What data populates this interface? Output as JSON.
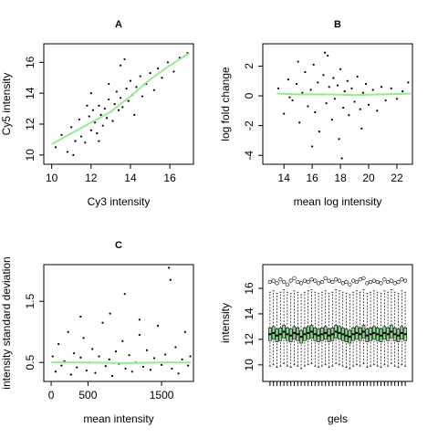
{
  "chart_data": [
    {
      "type": "scatter",
      "title": "A",
      "xlabel": "Cy3 intensity",
      "ylabel": "Cy5 intensity",
      "xlim": [
        9.6,
        17.2
      ],
      "ylim": [
        9.4,
        17.2
      ],
      "xticks": [
        10,
        12,
        14,
        16
      ],
      "yticks": [
        10,
        12,
        14,
        16
      ],
      "color": "#000000",
      "x": [
        10.2,
        10.5,
        10.8,
        11,
        11.2,
        11.4,
        11.5,
        11.7,
        11.9,
        12,
        12.1,
        12.2,
        12.3,
        12.4,
        12.5,
        12.6,
        12.7,
        12.8,
        12.9,
        13,
        13.1,
        13.2,
        13.3,
        13.4,
        13.5,
        13.6,
        13.8,
        13.9,
        14,
        14.1,
        14.3,
        14.5,
        14.6,
        14.8,
        15,
        15.2,
        15.4,
        15.6,
        15.9,
        16.2,
        16.5,
        16.9,
        11.8,
        12.9,
        13.5,
        12.4,
        14.2,
        11.1,
        12,
        13.7
      ],
      "y": [
        10.5,
        11.3,
        10.2,
        11.8,
        10.9,
        12.3,
        11.2,
        10.8,
        12.5,
        11.6,
        12.9,
        12.1,
        11.4,
        13.2,
        12.6,
        11.9,
        13,
        12.4,
        13.6,
        12.8,
        12.2,
        13.3,
        14.1,
        12.9,
        13.7,
        13.1,
        14.3,
        13.5,
        14.8,
        13.9,
        14.4,
        15.1,
        13.8,
        14.6,
        15.3,
        14.2,
        15.6,
        15,
        16,
        15.4,
        16.3,
        16.6,
        13.2,
        14.6,
        15.8,
        10.9,
        12.6,
        10,
        14,
        16.2
      ],
      "trend": {
        "color": "#90ee90",
        "x": [
          10,
          11,
          12,
          13,
          14,
          15,
          16,
          17
        ],
        "y": [
          10.7,
          11.4,
          12.1,
          12.8,
          13.8,
          14.9,
          15.8,
          16.6
        ]
      }
    },
    {
      "type": "scatter",
      "title": "B",
      "xlabel": "mean log intensity",
      "ylabel": "log fold change",
      "xlim": [
        12.5,
        23.1
      ],
      "ylim": [
        -4.6,
        3.5
      ],
      "xticks": [
        14,
        16,
        18,
        20,
        22
      ],
      "yticks": [
        -4,
        -2,
        0,
        2
      ],
      "color": "#000000",
      "x": [
        13.6,
        14,
        14.3,
        14.6,
        14.9,
        15.1,
        15.3,
        15.5,
        15.7,
        15.9,
        16.1,
        16.2,
        16.4,
        16.5,
        16.7,
        16.8,
        17,
        17.1,
        17.2,
        17.4,
        17.5,
        17.6,
        17.8,
        17.9,
        18,
        18.2,
        18.3,
        18.5,
        18.6,
        18.8,
        19,
        19.2,
        19.4,
        19.6,
        19.8,
        20,
        20.3,
        20.6,
        20.9,
        21.2,
        21.6,
        22,
        22.4,
        22.8,
        16,
        18.1,
        16.9,
        15,
        19.5,
        14.4
      ],
      "y": [
        0.5,
        -1.2,
        1.1,
        -0.3,
        0.8,
        -1.8,
        0.2,
        1.6,
        -0.7,
        0.4,
        2.1,
        -1.1,
        0.9,
        -2.4,
        0.1,
        1.4,
        -0.5,
        2.7,
        0.6,
        -1.6,
        1.2,
        -0.2,
        0.7,
        -2.9,
        1.8,
        -0.8,
        0.3,
        1,
        -1.3,
        0.5,
        -0.4,
        1.3,
        -0.9,
        0.2,
        0.8,
        -0.6,
        0.4,
        -1,
        0.6,
        -0.3,
        0.5,
        -0.2,
        0.3,
        0.9,
        -3.4,
        -4.2,
        2.9,
        2.3,
        -2.2,
        -0.1
      ],
      "trend": {
        "color": "#90ee90",
        "x": [
          13.5,
          15,
          17,
          19,
          21,
          23
        ],
        "y": [
          0.15,
          0.1,
          0.1,
          0.05,
          0.1,
          0.15
        ]
      }
    },
    {
      "type": "scatter",
      "title": "C",
      "xlabel": "mean intensity",
      "ylabel": "intensity standard deviation",
      "xlim": [
        -100,
        1933
      ],
      "ylim": [
        0.19,
        2.1
      ],
      "xticks": [
        0,
        500,
        1500
      ],
      "yticks": [
        0.5,
        1.5
      ],
      "color": "#000000",
      "x": [
        20,
        60,
        100,
        140,
        180,
        230,
        270,
        310,
        350,
        400,
        440,
        480,
        520,
        560,
        600,
        650,
        700,
        740,
        790,
        830,
        880,
        920,
        970,
        1010,
        1060,
        1100,
        1150,
        1200,
        1250,
        1300,
        1350,
        1400,
        1450,
        1500,
        1550,
        1600,
        1640,
        1690,
        1730,
        1780,
        1820,
        1860,
        1890,
        1000,
        1620,
        800,
        400,
        1200
      ],
      "y": [
        0.6,
        0.35,
        0.8,
        0.45,
        0.52,
        1,
        0.3,
        0.65,
        0.42,
        0.58,
        0.9,
        0.37,
        0.5,
        0.72,
        0.33,
        0.6,
        1.15,
        0.44,
        0.55,
        0.28,
        0.68,
        0.48,
        0.85,
        0.4,
        0.62,
        0.35,
        0.5,
        0.95,
        0.43,
        0.7,
        0.38,
        0.57,
        1.1,
        0.46,
        0.63,
        2.05,
        0.4,
        0.75,
        0.32,
        0.55,
        1,
        0.45,
        0.6,
        1.62,
        1.85,
        1.3,
        1.25,
        1.2
      ],
      "trend": {
        "color": "#90ee90",
        "x": [
          0,
          500,
          1000,
          1500,
          1900
        ],
        "y": [
          0.5,
          0.5,
          0.49,
          0.5,
          0.5
        ]
      }
    },
    {
      "type": "box",
      "xlabel": "gels",
      "ylabel": "intensity",
      "ylim": [
        8.7,
        17.86
      ],
      "yticks": [
        10,
        12,
        14,
        16
      ],
      "color": "#90d890",
      "categories": [
        null,
        null,
        null,
        null,
        null,
        null,
        null,
        null,
        null,
        null,
        null,
        null,
        null,
        null,
        null,
        null,
        null,
        null,
        null,
        null,
        null,
        null,
        null,
        null,
        null,
        null,
        null,
        null,
        null,
        null,
        null,
        null,
        null,
        null,
        null,
        null,
        null,
        null,
        null,
        null
      ],
      "median": [
        12.4,
        12.5,
        12.3,
        12.4,
        12.6,
        12.4,
        12.3,
        12.5,
        12.4,
        12.2,
        12.4,
        12.5,
        12.6,
        12.4,
        12.3,
        12.4,
        12.5,
        12.3,
        12.4,
        12.6,
        12.5,
        12.4,
        12.3,
        12.2,
        12.4,
        12.5,
        12.4,
        12.6,
        12.3,
        12.4,
        12.5,
        12.4,
        12.3,
        12.5,
        12.4,
        12.6,
        12.4,
        12.3,
        12.5,
        12.4
      ],
      "q1": [
        11.9,
        12,
        11.8,
        11.9,
        12.1,
        11.9,
        11.8,
        12,
        11.9,
        11.7,
        11.9,
        12,
        12.1,
        11.9,
        11.8,
        11.9,
        12,
        11.8,
        11.9,
        12.1,
        12,
        11.9,
        11.8,
        11.7,
        11.9,
        12,
        11.9,
        12.1,
        11.8,
        11.9,
        12,
        11.9,
        11.8,
        12,
        11.9,
        12.1,
        11.9,
        11.8,
        12,
        11.9
      ],
      "q3": [
        12.9,
        13,
        12.8,
        12.9,
        13.1,
        12.9,
        12.8,
        13,
        12.9,
        12.7,
        12.9,
        13,
        13.1,
        12.9,
        12.8,
        12.9,
        13,
        12.8,
        12.9,
        13.1,
        13,
        12.9,
        12.8,
        12.7,
        12.9,
        13,
        12.9,
        13.1,
        12.8,
        12.9,
        13,
        12.9,
        12.8,
        13,
        12.9,
        13.1,
        12.9,
        12.8,
        13,
        12.9
      ],
      "whisker_low": [
        9.9,
        10,
        9.8,
        9.9,
        10.1,
        9.9,
        9.8,
        10,
        9.9,
        9.7,
        9.9,
        10,
        10.1,
        9.9,
        9.8,
        9.9,
        10,
        9.8,
        9.9,
        10.1,
        10,
        9.9,
        9.8,
        9.7,
        9.9,
        10,
        9.9,
        10.1,
        9.8,
        9.9,
        10,
        9.9,
        9.8,
        10,
        9.9,
        10.1,
        9.9,
        9.8,
        10,
        9.9
      ],
      "whisker_high": [
        15.7,
        15.8,
        15.6,
        15.7,
        15.9,
        15.7,
        15.6,
        15.8,
        15.7,
        15.5,
        15.7,
        15.8,
        15.9,
        15.7,
        15.6,
        15.7,
        15.8,
        15.6,
        15.7,
        15.9,
        15.8,
        15.7,
        15.6,
        15.5,
        15.7,
        15.8,
        15.7,
        15.9,
        15.6,
        15.7,
        15.8,
        15.7,
        15.6,
        15.8,
        15.7,
        15.9,
        15.7,
        15.6,
        15.8,
        15.7
      ],
      "outliers": [
        16.5,
        16.6,
        16.4,
        16.7,
        16.5,
        16.3,
        16.6,
        16.8,
        16.5,
        16.4,
        16.6,
        16.5,
        16.7,
        16.6,
        16.4,
        16.5,
        16.8,
        16.6,
        16.5,
        16.7,
        16.6,
        16.4,
        16.5,
        16.3,
        16.6,
        16.5,
        16.7,
        16.8,
        16.4,
        16.5,
        16.6,
        16.5,
        16.4,
        16.7,
        16.5,
        16.6,
        16.4,
        16.5,
        16.7,
        16.6
      ]
    }
  ]
}
